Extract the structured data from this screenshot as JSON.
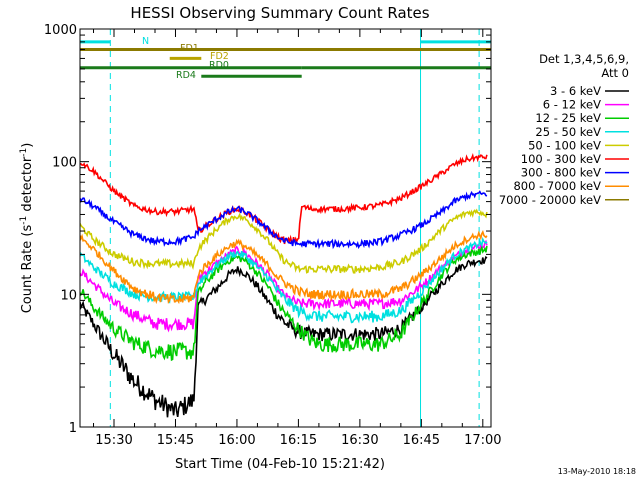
{
  "chart_data": {
    "type": "line",
    "title": "HESSI Observing Summary Count Rates",
    "xlabel": "Start Time (04-Feb-10 15:21:42)",
    "ylabel_main": "Count Rate (s",
    "ylabel_sup1": "-1",
    "ylabel_mid": " detector",
    "ylabel_sup2": "-1",
    "ylabel_end": ")",
    "y_scale": "log",
    "ylim": [
      1,
      1000
    ],
    "xlim_minutes_after_1500": [
      21.7,
      122
    ],
    "x_ticks": [
      {
        "min": 30,
        "label": "15:30"
      },
      {
        "min": 45,
        "label": "15:45"
      },
      {
        "min": 60,
        "label": "16:00"
      },
      {
        "min": 75,
        "label": "16:15"
      },
      {
        "min": 90,
        "label": "16:30"
      },
      {
        "min": 105,
        "label": "16:45"
      },
      {
        "min": 120,
        "label": "17:00"
      }
    ],
    "y_ticks": [
      {
        "value": 1,
        "label": "1"
      },
      {
        "value": 10,
        "label": "10"
      },
      {
        "value": 100,
        "label": "100"
      },
      {
        "value": 1000,
        "label": "1000"
      }
    ],
    "legend_header_1": "Det 1,3,4,5,6,9,",
    "legend_header_2": "Att 0",
    "legend_position": "right, outside plot",
    "time_markers": [
      {
        "min": 21.7,
        "color": "#00e0e0",
        "style": "solid"
      },
      {
        "min": 29.1,
        "color": "#00e0e0",
        "style": "dashed"
      },
      {
        "min": 104.8,
        "color": "#00e0e0",
        "style": "solid"
      },
      {
        "min": 119.1,
        "color": "#00e0e0",
        "style": "dashed"
      }
    ],
    "flag_bars": [
      {
        "label": "N",
        "color": "#00e0e0",
        "segments": [
          [
            21.7,
            29.1
          ],
          [
            104.8,
            121.9
          ]
        ],
        "level": 800
      },
      {
        "label": "FD1",
        "color": "#8b7a00",
        "segments": [
          [
            21.7,
            121.9
          ]
        ],
        "level": 700
      },
      {
        "label": "FD2",
        "color": "#b8a300",
        "segments": [
          [
            43.6,
            51.3
          ]
        ],
        "level": 600
      },
      {
        "label": "RD0",
        "color": "#1a7a1a",
        "segments": [
          [
            21.7,
            75.8
          ],
          [
            75.8,
            121.9
          ]
        ],
        "level": 510
      },
      {
        "label": "RD4",
        "color": "#1a7a1a",
        "segments": [
          [
            51.3,
            75.8
          ]
        ],
        "level": 440
      }
    ],
    "series": [
      {
        "name": "3 - 6 keV",
        "color": "#000000",
        "x": [
          21.7,
          25,
          30,
          35,
          40,
          45,
          49.5,
          50.5,
          52,
          55,
          58,
          60,
          62,
          65,
          68,
          70,
          72,
          75,
          78,
          80,
          85,
          90,
          95,
          100,
          105,
          110,
          113,
          116,
          119,
          121
        ],
        "y": [
          8.5,
          6,
          3.5,
          2.2,
          1.6,
          1.3,
          1.6,
          8,
          9,
          11,
          14,
          15.5,
          14.5,
          11.5,
          8.5,
          7,
          6,
          5.2,
          5,
          5,
          5,
          5,
          5,
          5.5,
          8,
          12,
          15,
          17,
          18,
          18
        ]
      },
      {
        "name": "6 - 12 keV",
        "color": "#ff00ff",
        "x": [
          21.7,
          25,
          30,
          35,
          40,
          45,
          49.5,
          50.5,
          52,
          55,
          58,
          60,
          62,
          65,
          68,
          70,
          72,
          75,
          78,
          80,
          85,
          90,
          95,
          100,
          105,
          110,
          113,
          116,
          119,
          121
        ],
        "y": [
          15,
          12,
          8.5,
          7,
          6,
          6,
          6,
          13,
          14.5,
          17,
          20,
          21.5,
          20.5,
          17,
          13.5,
          11,
          9.5,
          8.5,
          8.5,
          8.5,
          8.5,
          8.5,
          8.5,
          9,
          11.5,
          16,
          19,
          21.5,
          23,
          24
        ]
      },
      {
        "name": "12 - 25 keV",
        "color": "#00cc00",
        "x": [
          21.7,
          25,
          30,
          35,
          40,
          45,
          49.5,
          50.5,
          52,
          55,
          58,
          60,
          62,
          65,
          68,
          70,
          72,
          75,
          78,
          80,
          85,
          90,
          95,
          100,
          105,
          110,
          113,
          116,
          119,
          121
        ],
        "y": [
          11,
          8,
          5.5,
          4.3,
          3.8,
          3.7,
          3.7,
          10,
          12,
          15,
          18,
          19,
          18,
          14.5,
          11,
          8.5,
          7,
          5.5,
          4.5,
          4.2,
          4.2,
          4.2,
          4.2,
          5,
          8.5,
          14,
          18,
          20,
          21,
          22
        ]
      },
      {
        "name": "25 - 50 keV",
        "color": "#00e0e0",
        "x": [
          21.7,
          25,
          30,
          35,
          40,
          45,
          49.5,
          50.5,
          52,
          55,
          58,
          60,
          62,
          65,
          68,
          70,
          72,
          75,
          78,
          80,
          85,
          90,
          95,
          100,
          105,
          110,
          113,
          116,
          119,
          121
        ],
        "y": [
          20,
          16,
          12,
          10,
          9.5,
          9.5,
          9.5,
          12,
          13.5,
          16.5,
          19.5,
          20.5,
          19.5,
          16,
          13,
          10.5,
          9,
          7.5,
          7,
          6.8,
          6.8,
          6.8,
          6.8,
          7.5,
          10.5,
          15.5,
          19.5,
          22,
          24,
          25
        ]
      },
      {
        "name": "50 - 100 keV",
        "color": "#cccc00",
        "x": [
          21.7,
          25,
          30,
          35,
          40,
          45,
          49.5,
          50.5,
          52,
          55,
          58,
          60,
          62,
          65,
          68,
          70,
          72,
          75,
          78,
          80,
          85,
          90,
          95,
          100,
          105,
          110,
          113,
          116,
          119,
          121
        ],
        "y": [
          33,
          26,
          20,
          17.5,
          17,
          17,
          17,
          22,
          25,
          31,
          37,
          39,
          37,
          31,
          24.5,
          20,
          17.5,
          15.5,
          15.5,
          15.5,
          15.5,
          15.5,
          16,
          17.5,
          22,
          31,
          37,
          41,
          42,
          40
        ]
      },
      {
        "name": "100 - 300 keV",
        "color": "#ff0000",
        "x": [
          21.7,
          25,
          30,
          35,
          40,
          45,
          49.5,
          50.5,
          52,
          55,
          58,
          60,
          62,
          65,
          68,
          70,
          72,
          75,
          75.8,
          78,
          80,
          85,
          90,
          95,
          100,
          105,
          110,
          113,
          116,
          119,
          121
        ],
        "y": [
          100,
          85,
          60,
          46,
          42,
          42,
          44,
          30,
          32,
          37,
          42,
          44,
          42,
          36,
          30,
          27,
          25,
          26,
          46,
          44,
          44,
          44,
          45,
          47,
          53,
          65,
          82,
          95,
          104,
          108,
          108
        ]
      },
      {
        "name": "300 - 800 keV",
        "color": "#0000ff",
        "x": [
          21.7,
          25,
          30,
          35,
          40,
          45,
          49.5,
          50.5,
          52,
          55,
          58,
          60,
          62,
          65,
          68,
          70,
          72,
          75,
          78,
          80,
          85,
          90,
          95,
          100,
          105,
          110,
          113,
          116,
          119,
          121
        ],
        "y": [
          53,
          46,
          35,
          28,
          25,
          25,
          27,
          30,
          32,
          37,
          42,
          44,
          42,
          36,
          30,
          27,
          25,
          24,
          24,
          24,
          24,
          24,
          25,
          28,
          33,
          42,
          50,
          55,
          57,
          57
        ]
      },
      {
        "name": "800 - 7000 keV",
        "color": "#ff8c00",
        "x": [
          21.7,
          25,
          30,
          35,
          40,
          45,
          49.5,
          50.5,
          52,
          55,
          58,
          60,
          62,
          65,
          68,
          70,
          72,
          75,
          78,
          80,
          85,
          90,
          95,
          100,
          105,
          110,
          113,
          116,
          119,
          121
        ],
        "y": [
          27,
          22,
          15,
          11,
          9.5,
          9,
          9.5,
          14,
          16,
          19.5,
          23,
          24.5,
          23,
          19.5,
          16,
          13.5,
          12,
          10.5,
          10,
          10,
          10,
          10,
          10,
          11,
          14,
          19,
          23,
          26,
          28,
          28
        ]
      },
      {
        "name": "7000 - 20000 keV",
        "color": "#8b7a00",
        "x": [],
        "y": []
      }
    ],
    "footer_date": "13-May-2010 18:18"
  }
}
